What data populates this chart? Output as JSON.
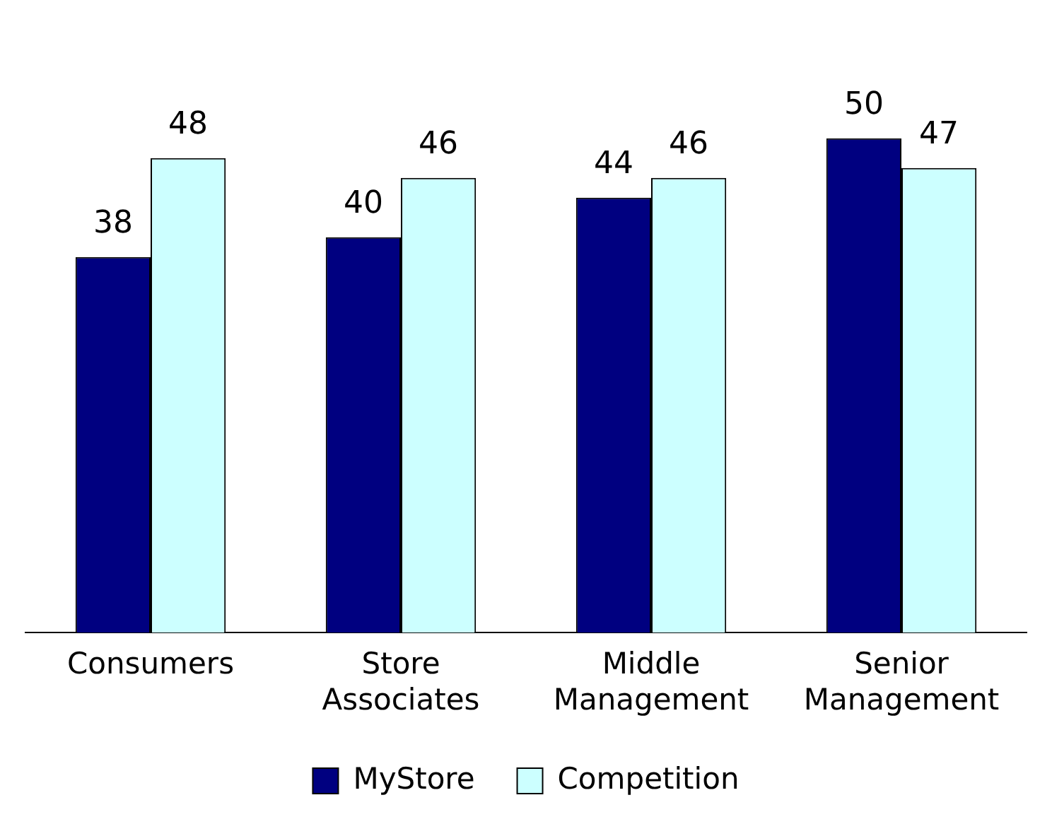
{
  "chart_data": {
    "type": "bar",
    "categories": [
      "Consumers",
      "Store Associates",
      "Middle Management",
      "Senior Management"
    ],
    "series": [
      {
        "name": "MyStore",
        "color": "#000080",
        "values": [
          38,
          40,
          44,
          50
        ]
      },
      {
        "name": "Competition",
        "color": "#ccffff",
        "values": [
          48,
          46,
          46,
          47
        ]
      }
    ],
    "data_labels": true,
    "legend": "bottom",
    "grid": false
  }
}
